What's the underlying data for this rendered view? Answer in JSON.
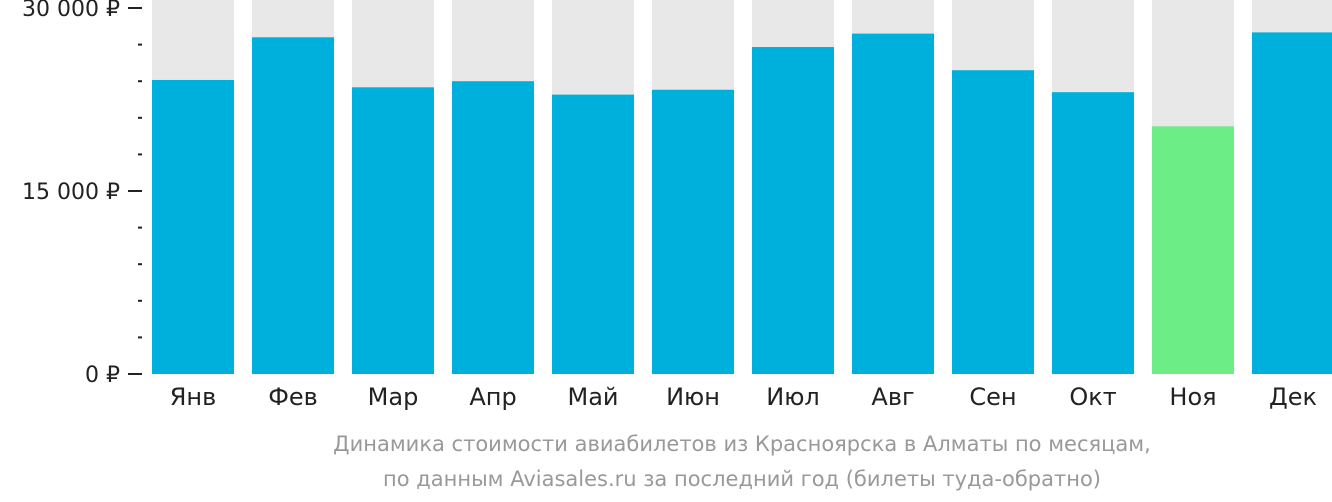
{
  "chart_data": {
    "type": "bar",
    "categories": [
      "Янв",
      "Фев",
      "Мар",
      "Апр",
      "Май",
      "Июн",
      "Июл",
      "Авг",
      "Сен",
      "Окт",
      "Ноя",
      "Дек"
    ],
    "values": [
      24100,
      27600,
      23500,
      24000,
      22900,
      23300,
      26800,
      27900,
      24900,
      23100,
      20300,
      28000
    ],
    "ylim": [
      0,
      30000
    ],
    "y_ticks": [
      {
        "value": 0,
        "label": "0 ₽"
      },
      {
        "value": 15000,
        "label": "15 000 ₽"
      },
      {
        "value": 30000,
        "label": "30 000 ₽"
      }
    ],
    "minor_tick_step": 3000,
    "highlight_index": 10,
    "colors": {
      "bar": "#00b0dc",
      "highlight": "#6ced85",
      "background_bar": "#e8e8e8",
      "text": "#222222",
      "caption": "#999999"
    },
    "legend": "none",
    "grid": false
  },
  "caption": {
    "line1": "Динамика стоимости авиабилетов из Красноярска в Алматы по месяцам,",
    "line2": "по данным Aviasales.ru за последний год (билеты туда-обратно)"
  }
}
